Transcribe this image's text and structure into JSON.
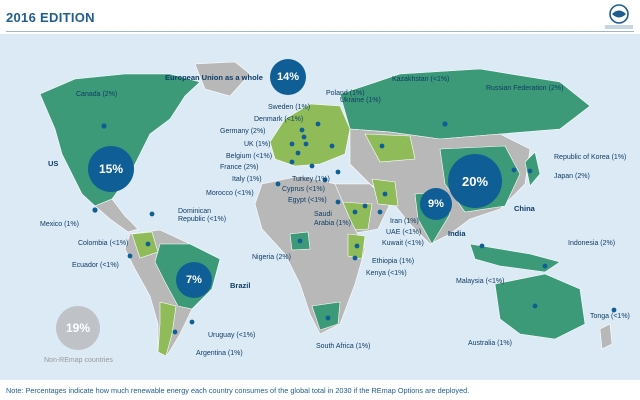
{
  "header": {
    "edition": "2016 EDITION",
    "logo_text": "International Re"
  },
  "colors": {
    "ocean": "#dceaf5",
    "remap": "#3c9a78",
    "eu": "#8fbc58",
    "nonremap": "#b8b8b8",
    "dot": "#0f5f96",
    "text": "#0f3d66"
  },
  "legend": {
    "value": "19%",
    "label": "Non-REmap countries"
  },
  "bubbles": {
    "eu": {
      "value": "14%",
      "label": "European Union as a whole"
    },
    "us": "15%",
    "china": "20%",
    "india": "9%",
    "brazil": "7%"
  },
  "labels": {
    "canada": "Canada (2%)",
    "us": "US",
    "mexico": "Mexico (1%)",
    "dominican": "Dominican",
    "dominican2": "Republic (<1%)",
    "colombia": "Colombia (<1%)",
    "ecuador": "Ecuador (<1%)",
    "brazil": "Brazil",
    "uruguay": "Uruguay (<1%)",
    "argentina": "Argentina (1%)",
    "poland": "Poland (1%)",
    "sweden": "Sweden (1%)",
    "denmark": "Denmark (<1%)",
    "germany": "Germany (2%)",
    "uk": "UK (1%)",
    "belgium": "Belgium (<1%)",
    "france": "France (2%)",
    "italy": "Italy (1%)",
    "morocco": "Morocco (<1%)",
    "ukraine": "Ukraine (1%)",
    "kazakhstan": "Kazakhstan (<1%)",
    "russia": "Russian Federation (2%)",
    "turkey": "Turkey (1%)",
    "cyprus": "Cyprus (<1%)",
    "egypt": "Egypt (<1%)",
    "saudi": "Saudi",
    "saudi2": "Arabia (1%)",
    "iran": "Iran (1%)",
    "uae": "UAE (<1%)",
    "kuwait": "Kuwait (<1%)",
    "ethiopia": "Ethiopia (1%)",
    "kenya": "Kenya (<1%)",
    "nigeria": "Nigeria (2%)",
    "southafrica": "South Africa (1%)",
    "india": "India",
    "china": "China",
    "korea": "Republic of Korea (1%)",
    "japan": "Japan (2%)",
    "indonesia": "Indonesia (2%)",
    "malaysia": "Malaysia (<1%)",
    "australia": "Australia (1%)",
    "tonga": "Tonga (<1%)"
  },
  "note": "Note: Percentages indicate how much renewable energy each country consumes of the global total in 2030 if the REmap Options are deployed."
}
